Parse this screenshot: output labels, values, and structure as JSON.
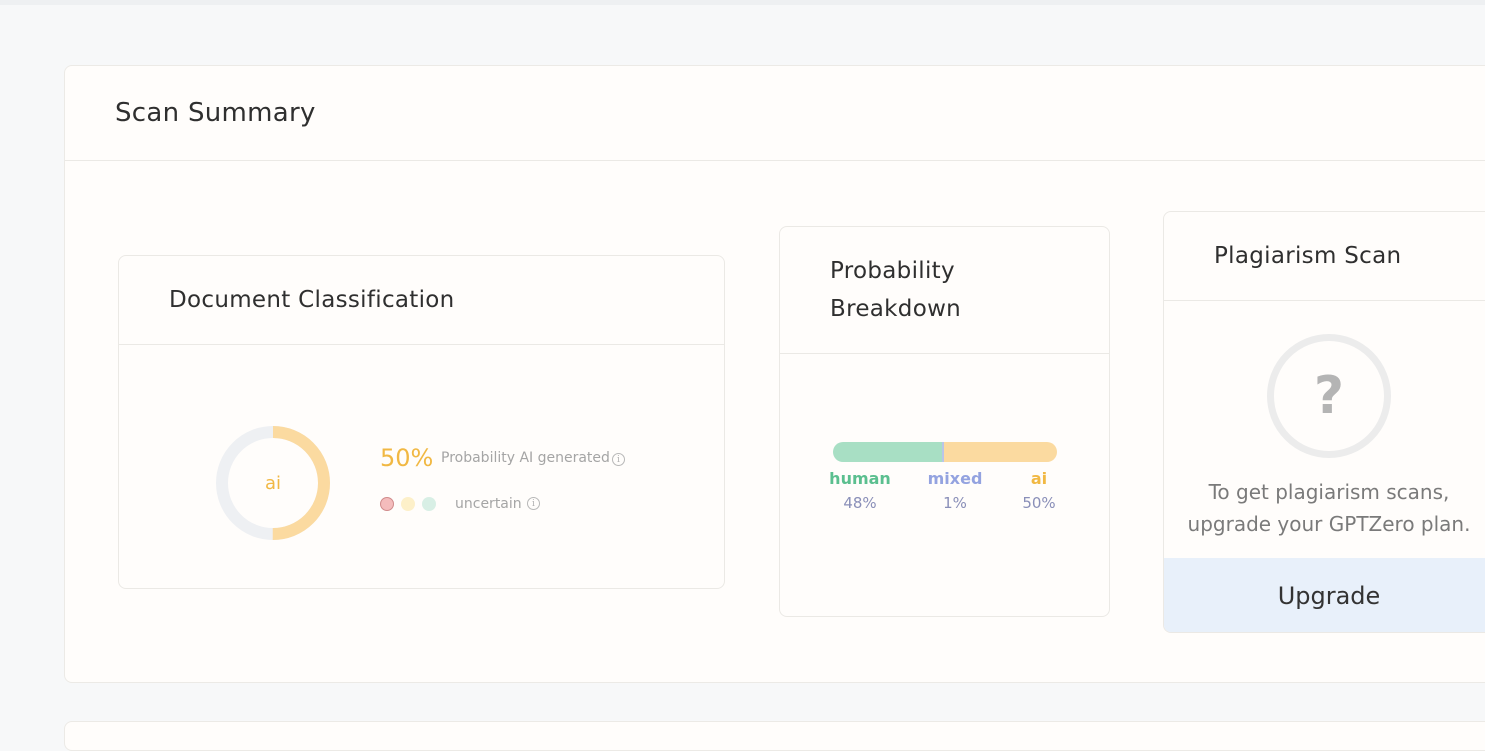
{
  "scan_summary": {
    "title": "Scan Summary"
  },
  "document_classification": {
    "title": "Document Classification",
    "donut_label": "ai",
    "ai_probability": 0.5,
    "percent_text": "50%",
    "probability_label": "Probability AI generated",
    "confidence_label": "uncertain",
    "colors": {
      "ai": "#f1b843",
      "ai_fill": "#fbdaa0",
      "track": "#eef0f3"
    }
  },
  "probability_breakdown": {
    "title_line1": "Probability",
    "title_line2": "Breakdown",
    "segments": [
      {
        "label": "human",
        "value_text": "48%",
        "fraction": 0.48,
        "color": "#a8dfc4"
      },
      {
        "label": "mixed",
        "value_text": "1%",
        "fraction": 0.01,
        "color": "#b9c5e8"
      },
      {
        "label": "ai",
        "value_text": "50%",
        "fraction": 0.5,
        "color": "#fbdaa0"
      }
    ]
  },
  "plagiarism_scan": {
    "title": "Plagiarism Scan",
    "icon": "question-mark-icon",
    "message_line1": "To get plagiarism scans,",
    "message_line2": "upgrade your GPTZero plan.",
    "upgrade_label": "Upgrade"
  }
}
